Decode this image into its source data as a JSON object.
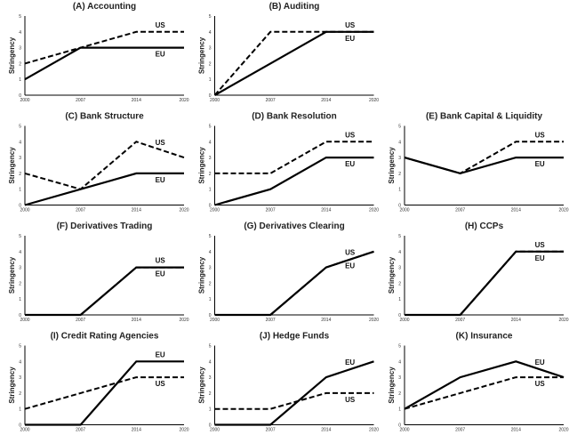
{
  "chart_data": [
    {
      "type": "line",
      "title": "(A) Accounting",
      "ylabel": "Stringency",
      "x": [
        2000,
        2007,
        2014,
        2020
      ],
      "ylim": [
        0,
        5
      ],
      "series": [
        {
          "name": "EU",
          "style": "solid",
          "values": [
            1,
            3,
            3,
            3
          ]
        },
        {
          "name": "US",
          "style": "dashed",
          "values": [
            2,
            3,
            4,
            4
          ]
        }
      ]
    },
    {
      "type": "line",
      "title": "(B) Auditing",
      "ylabel": "Stringency",
      "x": [
        2000,
        2007,
        2014,
        2020
      ],
      "ylim": [
        0,
        5
      ],
      "series": [
        {
          "name": "EU",
          "style": "solid",
          "values": [
            0,
            2,
            4,
            4
          ]
        },
        {
          "name": "US",
          "style": "dashed",
          "values": [
            0,
            4,
            4,
            4
          ]
        }
      ]
    },
    {
      "type": "line",
      "title": "(C) Bank Structure",
      "ylabel": "Stringency",
      "x": [
        2000,
        2007,
        2014,
        2020
      ],
      "ylim": [
        0,
        5
      ],
      "series": [
        {
          "name": "EU",
          "style": "solid",
          "values": [
            0,
            1,
            2,
            2
          ]
        },
        {
          "name": "US",
          "style": "dashed",
          "values": [
            2,
            1,
            4,
            3
          ]
        }
      ]
    },
    {
      "type": "line",
      "title": "(D) Bank Resolution",
      "ylabel": "Stringency",
      "x": [
        2000,
        2007,
        2014,
        2020
      ],
      "ylim": [
        0,
        5
      ],
      "series": [
        {
          "name": "EU",
          "style": "solid",
          "values": [
            0,
            1,
            3,
            3
          ]
        },
        {
          "name": "US",
          "style": "dashed",
          "values": [
            2,
            2,
            4,
            4
          ]
        }
      ]
    },
    {
      "type": "line",
      "title": "(E) Bank Capital & Liquidity",
      "ylabel": "Stringency",
      "x": [
        2000,
        2007,
        2014,
        2020
      ],
      "ylim": [
        0,
        5
      ],
      "series": [
        {
          "name": "EU",
          "style": "solid",
          "values": [
            3,
            2,
            3,
            3
          ]
        },
        {
          "name": "US",
          "style": "dashed",
          "values": [
            3,
            2,
            4,
            4
          ]
        }
      ]
    },
    {
      "type": "line",
      "title": "(F) Derivatives Trading",
      "ylabel": "Stringency",
      "x": [
        2000,
        2007,
        2014,
        2020
      ],
      "ylim": [
        0,
        5
      ],
      "series": [
        {
          "name": "EU",
          "style": "solid",
          "values": [
            0,
            0,
            3,
            3
          ]
        },
        {
          "name": "US",
          "style": "dashed",
          "values": [
            0,
            0,
            3,
            3
          ]
        }
      ]
    },
    {
      "type": "line",
      "title": "(G) Derivatives Clearing",
      "ylabel": "Stringency",
      "x": [
        2000,
        2007,
        2014,
        2020
      ],
      "ylim": [
        0,
        5
      ],
      "series": [
        {
          "name": "EU",
          "style": "solid",
          "values": [
            0,
            0,
            3,
            4
          ]
        },
        {
          "name": "US",
          "style": "dashed",
          "values": [
            0,
            0,
            3,
            4
          ]
        }
      ]
    },
    {
      "type": "line",
      "title": "(H) CCPs",
      "ylabel": "Stringency",
      "x": [
        2000,
        2007,
        2014,
        2020
      ],
      "ylim": [
        0,
        5
      ],
      "series": [
        {
          "name": "EU",
          "style": "solid",
          "values": [
            0,
            0,
            4,
            4
          ]
        },
        {
          "name": "US",
          "style": "dashed",
          "values": [
            0,
            0,
            4,
            4
          ]
        }
      ]
    },
    {
      "type": "line",
      "title": "(I) Credit Rating Agencies",
      "ylabel": "Stringency",
      "x": [
        2000,
        2007,
        2014,
        2020
      ],
      "ylim": [
        0,
        5
      ],
      "series": [
        {
          "name": "EU",
          "style": "solid",
          "values": [
            0,
            0,
            4,
            4
          ]
        },
        {
          "name": "US",
          "style": "dashed",
          "values": [
            1,
            2,
            3,
            3
          ]
        }
      ]
    },
    {
      "type": "line",
      "title": "(J) Hedge Funds",
      "ylabel": "Stringency",
      "x": [
        2000,
        2007,
        2014,
        2020
      ],
      "ylim": [
        0,
        5
      ],
      "series": [
        {
          "name": "EU",
          "style": "solid",
          "values": [
            0,
            0,
            3,
            4
          ]
        },
        {
          "name": "US",
          "style": "dashed",
          "values": [
            1,
            1,
            2,
            2
          ]
        }
      ]
    },
    {
      "type": "line",
      "title": "(K) Insurance",
      "ylabel": "Stringency",
      "x": [
        2000,
        2007,
        2014,
        2020
      ],
      "ylim": [
        0,
        5
      ],
      "series": [
        {
          "name": "EU",
          "style": "solid",
          "values": [
            1,
            3,
            4,
            3
          ]
        },
        {
          "name": "US",
          "style": "dashed",
          "values": [
            1,
            2,
            3,
            3
          ]
        }
      ]
    }
  ]
}
